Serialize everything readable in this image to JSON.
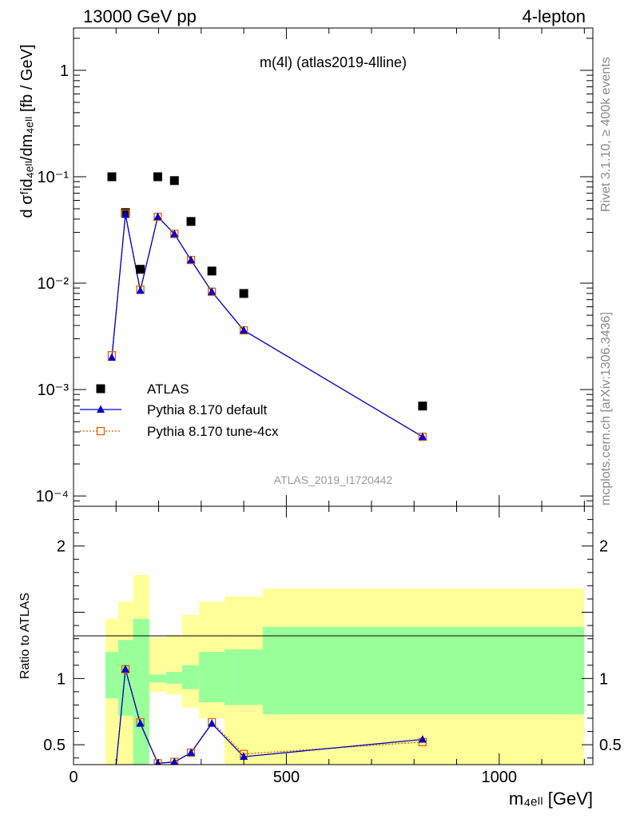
{
  "header": {
    "left": "13000 GeV pp",
    "right": "4-lepton"
  },
  "side_labels": {
    "rivet": "Rivet 3.1.10, ≥ 400k events",
    "mcplots": "mcplots.cern.ch [arXiv:1306.3436]"
  },
  "chart_data": [
    {
      "type": "scatter",
      "title": "m(4l) (atlas2019-4lline)",
      "watermark": "ATLAS_2019_I1720442",
      "ylabel": "d σᶠid₄ₑₗₗ/dm₄ₑₗₗ [fb / GeV]",
      "ylog": true,
      "xlim": [
        0,
        1220
      ],
      "ylim": [
        8e-05,
        2.5
      ],
      "yticks": [
        {
          "v": 1,
          "label": "1"
        },
        {
          "v": 0.1,
          "label": "10⁻¹"
        },
        {
          "v": 0.01,
          "label": "10⁻²"
        },
        {
          "v": 0.001,
          "label": "10⁻³"
        },
        {
          "v": 0.0001,
          "label": "10⁻⁴"
        }
      ],
      "legend": [
        "ATLAS",
        "Pythia 8.170 default",
        "Pythia 8.170 tune-4cx"
      ],
      "legend_position": "bottom-left",
      "series": [
        {
          "name": "ATLAS",
          "color": "#000000",
          "x": [
            90,
            122,
            157,
            198,
            237,
            276,
            325,
            400,
            820
          ],
          "y": [
            0.1,
            0.046,
            0.0135,
            0.1,
            0.092,
            0.038,
            0.013,
            0.008,
            0.0007
          ]
        },
        {
          "name": "Pythia 8.170 default",
          "color": "#0000cc",
          "x": [
            90,
            122,
            157,
            198,
            237,
            276,
            325,
            400,
            820
          ],
          "y": [
            0.002,
            0.044,
            0.0085,
            0.042,
            0.029,
            0.0165,
            0.0083,
            0.0036,
            0.00036
          ]
        },
        {
          "name": "Pythia 8.170 tune-4cx",
          "color": "#e06000",
          "x": [
            90,
            122,
            157,
            198,
            237,
            276,
            325,
            400,
            820
          ],
          "y": [
            0.0021,
            0.045,
            0.0087,
            0.042,
            0.029,
            0.0165,
            0.0083,
            0.0036,
            0.00036
          ]
        }
      ]
    },
    {
      "type": "line",
      "ylabel": "Ratio to ATLAS",
      "xlabel": "m₄ₑₗₗ [GeV]",
      "xlim": [
        0,
        1220
      ],
      "ylim": [
        0.35,
        2.3
      ],
      "xticks": [
        0,
        500,
        1000
      ],
      "yticks": [
        0.5,
        1,
        2
      ],
      "bands": [
        {
          "x0": 75,
          "x1": 105,
          "yellow": [
            0.35,
            1.45
          ],
          "green": [
            0.85,
            1.2
          ]
        },
        {
          "x0": 105,
          "x1": 140,
          "yellow": [
            0.35,
            1.58
          ],
          "green": [
            0.72,
            1.29
          ]
        },
        {
          "x0": 140,
          "x1": 178,
          "yellow": [
            0.35,
            1.78
          ],
          "green": [
            0.35,
            1.45
          ]
        },
        {
          "x0": 178,
          "x1": 218,
          "yellow": [
            0.9,
            1.31
          ],
          "green": [
            0.97,
            1.03
          ]
        },
        {
          "x0": 218,
          "x1": 255,
          "yellow": [
            0.88,
            1.33
          ],
          "green": [
            0.96,
            1.05
          ]
        },
        {
          "x0": 255,
          "x1": 295,
          "yellow": [
            0.78,
            1.48
          ],
          "green": [
            0.92,
            1.1
          ]
        },
        {
          "x0": 295,
          "x1": 355,
          "yellow": [
            0.7,
            1.58
          ],
          "green": [
            0.82,
            1.2
          ]
        },
        {
          "x0": 355,
          "x1": 445,
          "yellow": [
            0.35,
            1.62
          ],
          "green": [
            0.8,
            1.22
          ]
        },
        {
          "x0": 445,
          "x1": 1200,
          "yellow": [
            0.35,
            1.68
          ],
          "green": [
            0.73,
            1.39
          ]
        }
      ],
      "series": [
        {
          "name": "Pythia 8.170 default",
          "color": "#0000cc",
          "x": [
            90,
            122,
            157,
            198,
            237,
            276,
            325,
            400,
            820
          ],
          "y": [
            0.02,
            1.07,
            0.66,
            0.36,
            0.37,
            0.44,
            0.66,
            0.41,
            0.54
          ]
        },
        {
          "name": "Pythia 8.170 tune-4cx",
          "color": "#e06000",
          "x": [
            90,
            122,
            157,
            198,
            237,
            276,
            325,
            400,
            820
          ],
          "y": [
            0.02,
            1.07,
            0.67,
            0.36,
            0.37,
            0.44,
            0.67,
            0.43,
            0.52
          ]
        }
      ]
    }
  ]
}
